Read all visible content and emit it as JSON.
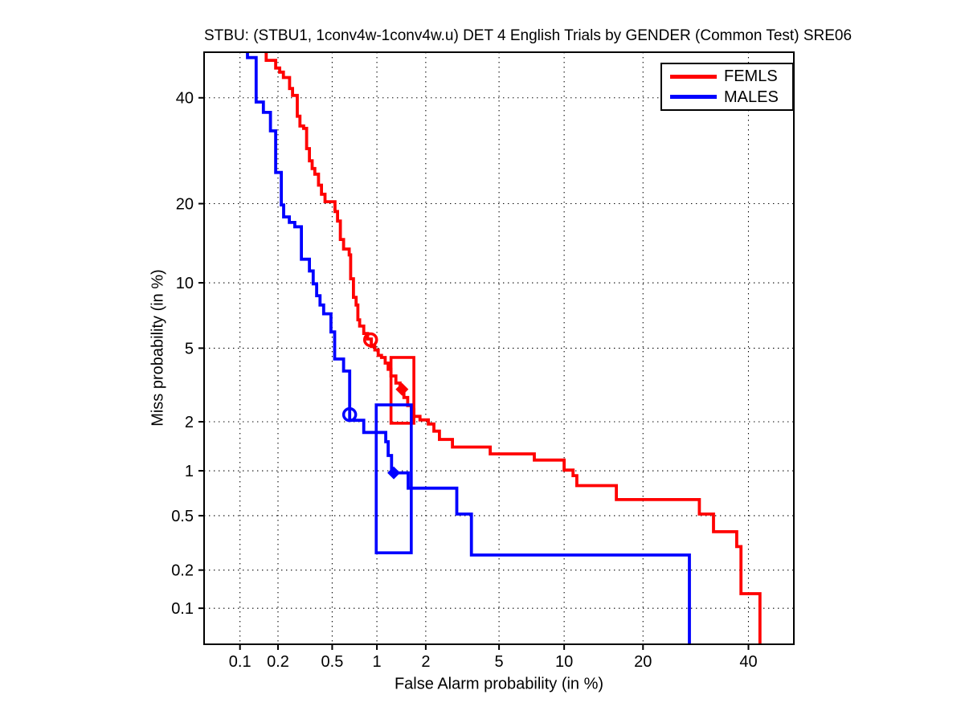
{
  "title": "STBU: (STBU1, 1conv4w-1conv4w.u) DET 4 English Trials by GENDER (Common Test) SRE06",
  "chart_data": {
    "type": "line",
    "subtype": "DET-curve",
    "title": "STBU: (STBU1, 1conv4w-1conv4w.u) DET 4 English Trials by GENDER (Common Test) SRE06",
    "xlabel": "False Alarm probability (in %)",
    "ylabel": "Miss probability (in %)",
    "x_scale": "probit",
    "y_scale": "probit",
    "xlim": [
      0.05,
      50
    ],
    "ylim": [
      0.05,
      50
    ],
    "x_ticks": [
      0.1,
      0.2,
      0.5,
      1,
      2,
      5,
      10,
      20,
      40
    ],
    "y_ticks": [
      0.1,
      0.2,
      0.5,
      1,
      2,
      5,
      10,
      20,
      40
    ],
    "grid": "dotted",
    "grid_color": "#000000",
    "axis_color": "#000000",
    "legend_position": "top-right",
    "series": [
      {
        "name": "FEMLS",
        "color": "#ff0000",
        "points": [
          [
            0.162,
            50
          ],
          [
            0.162,
            48.2
          ],
          [
            0.192,
            48.2
          ],
          [
            0.192,
            46.5
          ],
          [
            0.206,
            46.5
          ],
          [
            0.206,
            45.6
          ],
          [
            0.22,
            45.6
          ],
          [
            0.22,
            44.4
          ],
          [
            0.245,
            44.4
          ],
          [
            0.245,
            42.0
          ],
          [
            0.258,
            42.0
          ],
          [
            0.258,
            40.5
          ],
          [
            0.28,
            40.5
          ],
          [
            0.28,
            36.1
          ],
          [
            0.293,
            36.1
          ],
          [
            0.293,
            34.1
          ],
          [
            0.312,
            34.1
          ],
          [
            0.312,
            33.6
          ],
          [
            0.328,
            33.6
          ],
          [
            0.328,
            29.6
          ],
          [
            0.344,
            29.6
          ],
          [
            0.344,
            27.3
          ],
          [
            0.36,
            27.3
          ],
          [
            0.36,
            25.9
          ],
          [
            0.376,
            25.9
          ],
          [
            0.376,
            24.9
          ],
          [
            0.4,
            24.9
          ],
          [
            0.4,
            23.0
          ],
          [
            0.42,
            23.0
          ],
          [
            0.42,
            21.5
          ],
          [
            0.445,
            21.5
          ],
          [
            0.445,
            20.3
          ],
          [
            0.523,
            20.3
          ],
          [
            0.523,
            18.8
          ],
          [
            0.545,
            18.8
          ],
          [
            0.545,
            17.4
          ],
          [
            0.57,
            17.4
          ],
          [
            0.57,
            14.9
          ],
          [
            0.6,
            14.9
          ],
          [
            0.6,
            13.7
          ],
          [
            0.655,
            13.7
          ],
          [
            0.655,
            13.0
          ],
          [
            0.67,
            13.0
          ],
          [
            0.67,
            10.4
          ],
          [
            0.7,
            10.4
          ],
          [
            0.7,
            8.66
          ],
          [
            0.73,
            8.66
          ],
          [
            0.73,
            8.0
          ],
          [
            0.75,
            8.0
          ],
          [
            0.75,
            6.85
          ],
          [
            0.77,
            6.85
          ],
          [
            0.77,
            6.4
          ],
          [
            0.82,
            6.4
          ],
          [
            0.82,
            5.9
          ],
          [
            0.87,
            5.9
          ],
          [
            0.87,
            5.55
          ],
          [
            0.92,
            5.55
          ],
          [
            0.92,
            5.1
          ],
          [
            0.97,
            5.1
          ],
          [
            0.97,
            4.9
          ],
          [
            1.02,
            4.9
          ],
          [
            1.02,
            4.6
          ],
          [
            1.07,
            4.6
          ],
          [
            1.07,
            4.49
          ],
          [
            1.13,
            4.49
          ],
          [
            1.13,
            4.2
          ],
          [
            1.18,
            4.2
          ],
          [
            1.18,
            3.9
          ],
          [
            1.23,
            3.9
          ],
          [
            1.23,
            3.6
          ],
          [
            1.32,
            3.6
          ],
          [
            1.32,
            3.3
          ],
          [
            1.4,
            3.3
          ],
          [
            1.4,
            3.05
          ],
          [
            1.48,
            3.05
          ],
          [
            1.48,
            2.75
          ],
          [
            1.56,
            2.75
          ],
          [
            1.56,
            2.48
          ],
          [
            1.64,
            2.48
          ],
          [
            1.64,
            2.35
          ],
          [
            1.7,
            2.35
          ],
          [
            1.7,
            2.15
          ],
          [
            1.85,
            2.15
          ],
          [
            1.85,
            2.05
          ],
          [
            2.07,
            2.05
          ],
          [
            2.07,
            1.94
          ],
          [
            2.23,
            1.94
          ],
          [
            2.23,
            1.76
          ],
          [
            2.4,
            1.76
          ],
          [
            2.4,
            1.57
          ],
          [
            2.84,
            1.57
          ],
          [
            2.84,
            1.41
          ],
          [
            4.51,
            1.41
          ],
          [
            4.51,
            1.28
          ],
          [
            7.38,
            1.28
          ],
          [
            7.38,
            1.17
          ],
          [
            10.0,
            1.17
          ],
          [
            10.0,
            1.01
          ],
          [
            10.9,
            1.01
          ],
          [
            10.9,
            0.93
          ],
          [
            11.3,
            0.93
          ],
          [
            11.3,
            0.8
          ],
          [
            16.1,
            0.8
          ],
          [
            16.1,
            0.645
          ],
          [
            29.9,
            0.645
          ],
          [
            29.9,
            0.513
          ],
          [
            32.7,
            0.513
          ],
          [
            32.7,
            0.385
          ],
          [
            37.5,
            0.385
          ],
          [
            37.5,
            0.3
          ],
          [
            38.4,
            0.3
          ],
          [
            38.4,
            0.131
          ],
          [
            42.5,
            0.131
          ],
          [
            42.5,
            0.05
          ]
        ],
        "markers": [
          {
            "shape": "circle",
            "fill": "open",
            "x": 0.91,
            "y": 5.5
          },
          {
            "shape": "diamond",
            "fill": "solid",
            "x": 1.44,
            "y": 3.05
          }
        ],
        "box": {
          "x1": 1.23,
          "x2": 1.7,
          "y1": 1.96,
          "y2": 4.49
        }
      },
      {
        "name": "MALES",
        "color": "#0000ff",
        "points": [
          [
            0.115,
            50
          ],
          [
            0.115,
            48.8
          ],
          [
            0.135,
            48.8
          ],
          [
            0.135,
            39.1
          ],
          [
            0.154,
            39.1
          ],
          [
            0.154,
            36.9
          ],
          [
            0.175,
            36.9
          ],
          [
            0.175,
            33.1
          ],
          [
            0.192,
            33.1
          ],
          [
            0.192,
            25.2
          ],
          [
            0.212,
            25.2
          ],
          [
            0.212,
            19.8
          ],
          [
            0.221,
            19.8
          ],
          [
            0.221,
            18.0
          ],
          [
            0.244,
            18.0
          ],
          [
            0.244,
            17.2
          ],
          [
            0.268,
            17.2
          ],
          [
            0.268,
            16.6
          ],
          [
            0.3,
            16.6
          ],
          [
            0.3,
            12.5
          ],
          [
            0.344,
            12.5
          ],
          [
            0.344,
            11.2
          ],
          [
            0.366,
            11.2
          ],
          [
            0.366,
            9.9
          ],
          [
            0.388,
            9.9
          ],
          [
            0.388,
            8.8
          ],
          [
            0.41,
            8.8
          ],
          [
            0.41,
            8.0
          ],
          [
            0.435,
            8.0
          ],
          [
            0.435,
            7.3
          ],
          [
            0.49,
            7.3
          ],
          [
            0.49,
            6.0
          ],
          [
            0.52,
            6.0
          ],
          [
            0.52,
            4.41
          ],
          [
            0.6,
            4.41
          ],
          [
            0.6,
            3.82
          ],
          [
            0.66,
            3.82
          ],
          [
            0.66,
            2.04
          ],
          [
            0.82,
            2.04
          ],
          [
            0.82,
            1.73
          ],
          [
            1.14,
            1.73
          ],
          [
            1.14,
            1.52
          ],
          [
            1.18,
            1.52
          ],
          [
            1.18,
            1.25
          ],
          [
            1.24,
            1.25
          ],
          [
            1.24,
            0.97
          ],
          [
            1.57,
            0.97
          ],
          [
            1.57,
            0.77
          ],
          [
            3.0,
            0.77
          ],
          [
            3.0,
            0.513
          ],
          [
            3.6,
            0.513
          ],
          [
            3.6,
            0.26
          ],
          [
            28.0,
            0.26
          ],
          [
            28.0,
            0.05
          ]
        ],
        "markers": [
          {
            "shape": "circle",
            "fill": "open",
            "x": 0.66,
            "y": 2.2
          },
          {
            "shape": "diamond",
            "fill": "solid",
            "x": 1.28,
            "y": 0.97
          }
        ],
        "box": {
          "x1": 0.99,
          "x2": 1.64,
          "y1": 0.27,
          "y2": 2.5
        }
      }
    ]
  }
}
